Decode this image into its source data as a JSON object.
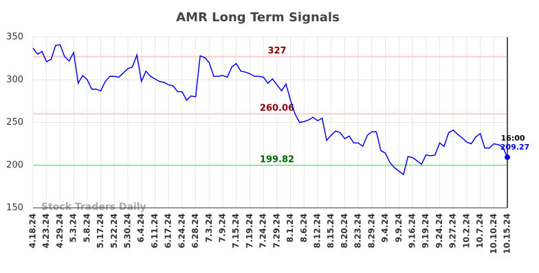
{
  "chart_data": {
    "type": "line",
    "title": "AMR Long Term Signals",
    "watermark": "Stock Traders Daily",
    "categories": [
      "4.18.24",
      null,
      null,
      "4.23.24",
      null,
      null,
      "4.29.24",
      null,
      null,
      "5.3.24",
      null,
      null,
      "5.8.24",
      null,
      null,
      "5.17.24",
      null,
      null,
      "5.22.24",
      null,
      null,
      "5.30.24",
      null,
      null,
      "6.4.24",
      null,
      null,
      "6.11.24",
      null,
      null,
      "6.17.24",
      null,
      null,
      "6.24.24",
      null,
      null,
      "6.28.24",
      null,
      null,
      "7.3.24",
      null,
      null,
      "7.9.24",
      null,
      null,
      "7.15.24",
      null,
      null,
      "7.19.24",
      null,
      null,
      "7.24.24",
      null,
      null,
      "7.29.24",
      null,
      null,
      "8.1.24",
      null,
      null,
      "8.6.24",
      null,
      null,
      "8.12.24",
      null,
      null,
      "8.15.24",
      null,
      null,
      "8.20.24",
      null,
      null,
      "8.23.24",
      null,
      null,
      "8.29.24",
      null,
      null,
      "9.4.24",
      null,
      null,
      "9.9.24",
      null,
      null,
      "9.16.24",
      null,
      null,
      "9.19.24",
      null,
      null,
      "9.24.24",
      null,
      null,
      "9.27.24",
      null,
      null,
      "10.2.24",
      null,
      null,
      "10.7.24",
      null,
      null,
      "10.10.24",
      null,
      null,
      "10.15.24"
    ],
    "series": [
      {
        "color": "#0000ee",
        "values": [
          337,
          330,
          333,
          321,
          324,
          340,
          341,
          327,
          322,
          332,
          296,
          305,
          300,
          289,
          289,
          287,
          298,
          304,
          304,
          303,
          308,
          313,
          315,
          329,
          298,
          310,
          304,
          301,
          298,
          297,
          294,
          293,
          286,
          286,
          276,
          281,
          280,
          328,
          326,
          320,
          304,
          304,
          305,
          303,
          315,
          319,
          310,
          309,
          307,
          304,
          304,
          303,
          296,
          301,
          294,
          287,
          295,
          276,
          260,
          250,
          251,
          253,
          256,
          252,
          255,
          229,
          235,
          240,
          238,
          231,
          234,
          226,
          226,
          222,
          235,
          239,
          239,
          217,
          214,
          203,
          197,
          193,
          189,
          210,
          209,
          205,
          201,
          212,
          211,
          212,
          226,
          222,
          238,
          241,
          236,
          232,
          227,
          225,
          233,
          237,
          220,
          220,
          225,
          224,
          221,
          209.27
        ]
      }
    ],
    "last_time": "16:00",
    "levels": [
      {
        "value": 327,
        "line_color": "#ffcccc",
        "text_color": "#8b0000"
      },
      {
        "value": 260.06,
        "line_color": "#ffcccc",
        "text_color": "#8b0000"
      },
      {
        "value": 199.82,
        "line_color": "#90ee90",
        "text_color": "#006400"
      }
    ],
    "ylim": [
      150,
      350
    ],
    "yticks": [
      150,
      200,
      250,
      300,
      350
    ],
    "grid": true
  }
}
